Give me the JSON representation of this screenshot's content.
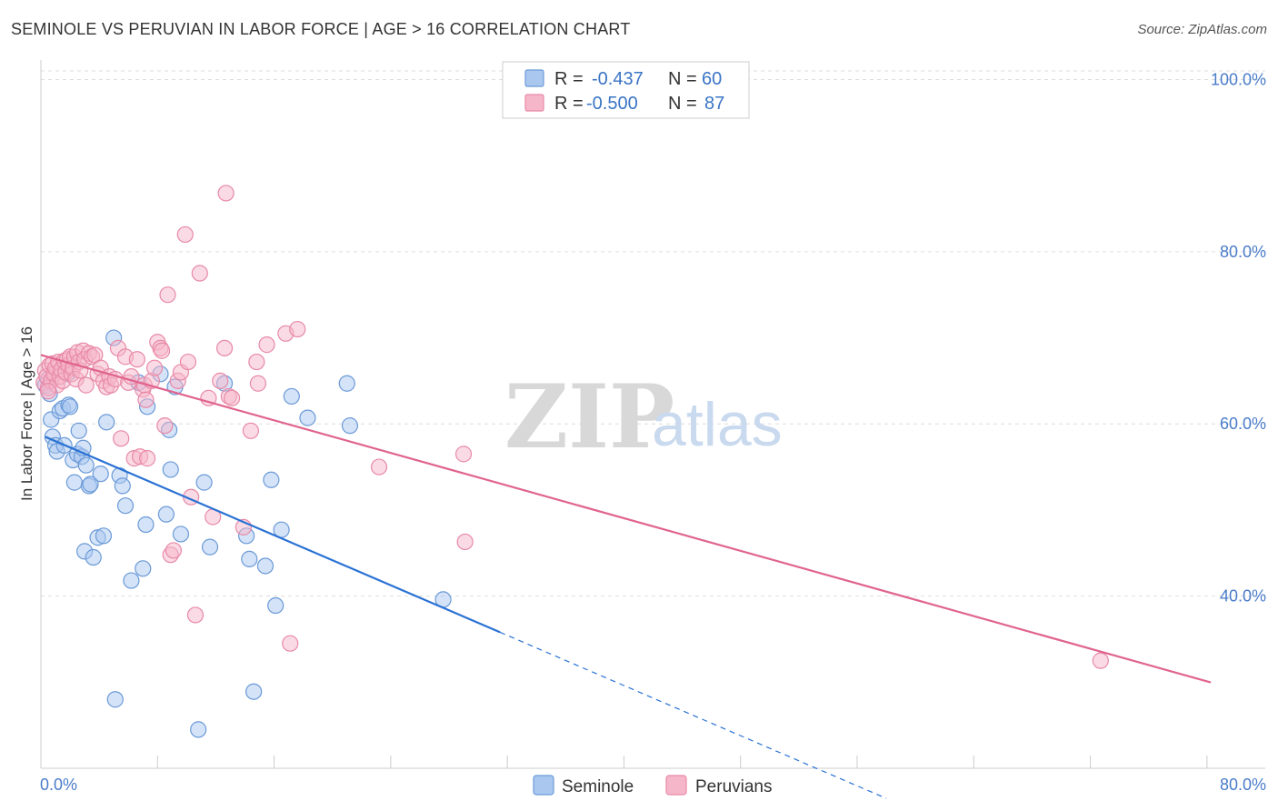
{
  "title": "SEMINOLE VS PERUVIAN IN LABOR FORCE | AGE > 16 CORRELATION CHART",
  "source": "Source: ZipAtlas.com",
  "watermark": {
    "zip": "ZIP",
    "atlas": "atlas"
  },
  "colors": {
    "seminole_fill": "#aac8ef",
    "seminole_stroke": "#6b9ad8",
    "seminole_line": "#2a72d4",
    "peruvian_fill": "#f6b6ca",
    "peruvian_stroke": "#e88aa8",
    "peruvian_line": "#e0648e",
    "grid": "#dddddd",
    "tick_text": "#4a7cc9"
  },
  "legend": {
    "rows": [
      {
        "series": "Seminole",
        "r_label": "R =",
        "r_value": "-0.437",
        "n_label": "N =",
        "n_value": "60"
      },
      {
        "series": "Peruvians",
        "r_label": "R =",
        "r_value": "-0.500",
        "n_label": "N =",
        "n_value": "87"
      }
    ]
  },
  "chart_data": {
    "type": "scatter",
    "title": "SEMINOLE VS PERUVIAN IN LABOR FORCE | AGE > 16 CORRELATION CHART",
    "xlabel": "",
    "ylabel": "In Labor Force | Age > 16",
    "xlim": [
      0,
      84
    ],
    "ylim": [
      20,
      101
    ],
    "x_tick_labels": [
      "0.0%",
      "80.0%"
    ],
    "y_ticks": [
      40,
      60,
      80,
      100
    ],
    "y_tick_labels": [
      "40.0%",
      "60.0%",
      "80.0%",
      "100.0%"
    ],
    "series": [
      {
        "name": "Seminole",
        "points": [
          [
            0.3,
            64.5
          ],
          [
            0.5,
            65.2
          ],
          [
            0.6,
            63.5
          ],
          [
            0.7,
            60.5
          ],
          [
            0.8,
            58.5
          ],
          [
            1.0,
            57.5
          ],
          [
            1.1,
            56.8
          ],
          [
            1.3,
            61.5
          ],
          [
            1.5,
            61.8
          ],
          [
            1.6,
            57.5
          ],
          [
            1.8,
            65.8
          ],
          [
            1.9,
            62.2
          ],
          [
            2.0,
            62.0
          ],
          [
            2.2,
            55.8
          ],
          [
            2.3,
            53.2
          ],
          [
            2.5,
            56.5
          ],
          [
            2.6,
            59.2
          ],
          [
            2.8,
            56.2
          ],
          [
            2.9,
            57.2
          ],
          [
            3.0,
            45.2
          ],
          [
            3.1,
            55.2
          ],
          [
            3.3,
            52.8
          ],
          [
            3.4,
            53.0
          ],
          [
            3.6,
            44.5
          ],
          [
            3.9,
            46.8
          ],
          [
            4.1,
            54.2
          ],
          [
            4.3,
            47.0
          ],
          [
            4.5,
            60.2
          ],
          [
            5.0,
            70.0
          ],
          [
            5.1,
            28.0
          ],
          [
            5.4,
            54.0
          ],
          [
            5.6,
            52.8
          ],
          [
            5.8,
            50.5
          ],
          [
            6.2,
            41.8
          ],
          [
            6.7,
            64.8
          ],
          [
            7.0,
            43.2
          ],
          [
            7.2,
            48.3
          ],
          [
            7.3,
            62.0
          ],
          [
            8.2,
            65.8
          ],
          [
            8.6,
            49.5
          ],
          [
            8.8,
            59.3
          ],
          [
            8.9,
            54.7
          ],
          [
            9.2,
            64.3
          ],
          [
            9.6,
            47.2
          ],
          [
            10.8,
            24.5
          ],
          [
            11.2,
            53.2
          ],
          [
            11.6,
            45.7
          ],
          [
            12.6,
            64.7
          ],
          [
            14.1,
            47.0
          ],
          [
            14.3,
            44.3
          ],
          [
            14.6,
            28.9
          ],
          [
            15.4,
            43.5
          ],
          [
            15.8,
            53.5
          ],
          [
            16.1,
            38.9
          ],
          [
            16.5,
            47.7
          ],
          [
            17.2,
            63.2
          ],
          [
            18.3,
            60.7
          ],
          [
            21.0,
            64.7
          ],
          [
            21.2,
            59.8
          ],
          [
            27.6,
            39.6
          ]
        ]
      },
      {
        "name": "Peruvians",
        "points": [
          [
            0.2,
            64.8
          ],
          [
            0.3,
            66.2
          ],
          [
            0.4,
            65.5
          ],
          [
            0.5,
            64.2
          ],
          [
            0.6,
            66.8
          ],
          [
            0.7,
            65.0
          ],
          [
            0.8,
            67.0
          ],
          [
            0.9,
            65.8
          ],
          [
            1.0,
            66.5
          ],
          [
            1.1,
            64.5
          ],
          [
            1.2,
            67.2
          ],
          [
            1.3,
            65.5
          ],
          [
            1.4,
            66.3
          ],
          [
            1.5,
            65.0
          ],
          [
            1.6,
            67.3
          ],
          [
            1.7,
            66.0
          ],
          [
            1.8,
            67.5
          ],
          [
            1.9,
            66.8
          ],
          [
            2.0,
            67.8
          ],
          [
            2.1,
            65.8
          ],
          [
            2.2,
            66.5
          ],
          [
            2.3,
            67.8
          ],
          [
            2.4,
            65.2
          ],
          [
            2.5,
            68.3
          ],
          [
            2.6,
            67.2
          ],
          [
            2.7,
            66.2
          ],
          [
            2.9,
            68.5
          ],
          [
            3.0,
            67.5
          ],
          [
            3.1,
            64.5
          ],
          [
            3.3,
            68.2
          ],
          [
            3.5,
            67.8
          ],
          [
            3.7,
            68.0
          ],
          [
            3.9,
            65.8
          ],
          [
            4.1,
            66.5
          ],
          [
            4.3,
            65.0
          ],
          [
            4.5,
            64.3
          ],
          [
            4.7,
            65.5
          ],
          [
            4.8,
            64.5
          ],
          [
            5.1,
            65.2
          ],
          [
            5.3,
            68.8
          ],
          [
            5.5,
            58.3
          ],
          [
            5.8,
            67.8
          ],
          [
            6.0,
            64.8
          ],
          [
            6.2,
            65.5
          ],
          [
            6.4,
            56.0
          ],
          [
            6.6,
            67.5
          ],
          [
            6.8,
            56.2
          ],
          [
            7.0,
            64.0
          ],
          [
            7.1,
            64.5
          ],
          [
            7.2,
            62.8
          ],
          [
            7.3,
            56.0
          ],
          [
            7.6,
            65.0
          ],
          [
            7.8,
            66.5
          ],
          [
            8.0,
            69.5
          ],
          [
            8.2,
            68.8
          ],
          [
            8.3,
            68.5
          ],
          [
            8.5,
            59.8
          ],
          [
            8.7,
            75.0
          ],
          [
            8.9,
            44.8
          ],
          [
            9.1,
            45.3
          ],
          [
            9.4,
            65.0
          ],
          [
            9.6,
            66.0
          ],
          [
            9.9,
            82.0
          ],
          [
            10.1,
            67.2
          ],
          [
            10.3,
            51.5
          ],
          [
            10.6,
            37.8
          ],
          [
            10.9,
            77.5
          ],
          [
            11.5,
            63.0
          ],
          [
            11.8,
            49.2
          ],
          [
            12.3,
            65.0
          ],
          [
            12.6,
            68.8
          ],
          [
            12.7,
            86.8
          ],
          [
            12.9,
            63.2
          ],
          [
            13.1,
            63.0
          ],
          [
            13.9,
            48.0
          ],
          [
            14.4,
            59.2
          ],
          [
            14.8,
            67.2
          ],
          [
            14.9,
            64.7
          ],
          [
            15.5,
            69.2
          ],
          [
            16.8,
            70.5
          ],
          [
            17.1,
            34.5
          ],
          [
            17.6,
            71.0
          ],
          [
            23.2,
            55.0
          ],
          [
            29.0,
            56.5
          ],
          [
            29.1,
            46.3
          ],
          [
            72.7,
            32.5
          ],
          [
            0.5,
            63.8
          ]
        ]
      }
    ],
    "trendlines": [
      {
        "series": "Seminole",
        "x": [
          0.3,
          31.5
        ],
        "y": [
          58.5,
          35.8
        ],
        "dashed_extension_to": [
          58.0,
          16.5
        ]
      },
      {
        "series": "Peruvians",
        "x": [
          0.0,
          84.0
        ],
        "y": [
          68.0,
          28.2
        ]
      }
    ]
  },
  "bottom_legend": [
    {
      "label": "Seminole"
    },
    {
      "label": "Peruvians"
    }
  ]
}
